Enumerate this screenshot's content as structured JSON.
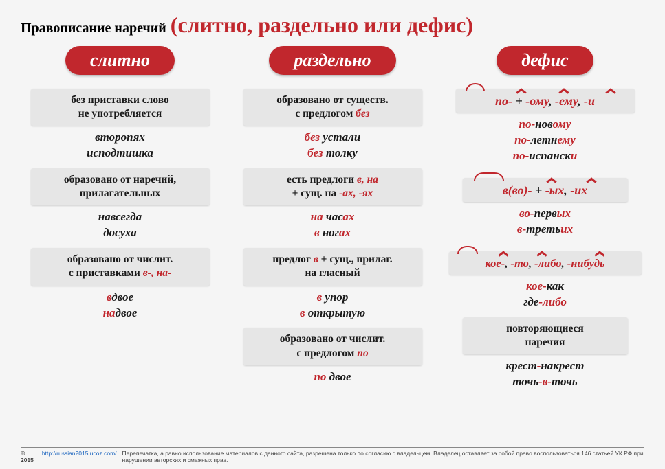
{
  "title": {
    "prefix": "Правописание наречий",
    "paren": "(слитно, раздельно или дефис)"
  },
  "pills": {
    "c1": "слитно",
    "c2": "раздельно",
    "c3": "дефис"
  },
  "col1": {
    "r1": {
      "rule": "без приставки слово<br>не употребляется",
      "ex": "<span class='k'>второпях</span><br><span class='k'>исподтишка</span>"
    },
    "r2": {
      "rule": "образовано от наречий,<br>прилагательных",
      "ex": "<span class='k'>навсегда</span><br><span class='k'>досуха</span>"
    },
    "r3": {
      "rule": "образовано от числит.<br>с приставками <span class='red-b'>в-, на-</span>",
      "ex": "<span class='r'>в</span><span class='k'>двое</span><br><span class='r'>на</span><span class='k'>двое</span>"
    }
  },
  "col2": {
    "r1": {
      "rule": "образовано от существ.<br>с предлогом <span class='red-b'>без</span>",
      "ex": "<span class='r'>без </span><span class='k'>устали</span><br><span class='r'>без </span><span class='k'>толку</span>"
    },
    "r2": {
      "rule": "есть предлоги <span class='red-b'>в, на</span><br>+ сущ. на <span class='red-b'>-ах, -ях</span>",
      "ex": "<span class='r'>на </span><span class='k'>час</span><span class='r'>ах</span><br><span class='r'>в </span><span class='k'>ног</span><span class='r'>ах</span>"
    },
    "r3": {
      "rule": "предлог <span class='red-b'>в</span> + сущ., прилаг.<br>на гласный",
      "ex": "<span class='r'>в </span><span class='k'>упор</span><br><span class='r'>в </span><span class='k'>открытую</span>"
    },
    "r4": {
      "rule": "образовано от числит.<br>с предлогом <span class='red-b'>по</span>",
      "ex": "<span class='r'>по </span><span class='k'>двое</span>"
    }
  },
  "col3": {
    "p1": {
      "pat": "<span class='r'>по-</span> + <span class='r'>-ому</span>, <span class='r'>-ему</span>, <span class='r'>-и</span>",
      "ex": "<span class='r'>по-</span><span class='k'>нов</span><span class='r'>ому</span><br><span class='r'>по-</span><span class='k'>летн</span><span class='r'>ему</span><br><span class='r'>по-</span><span class='k'>испанск</span><span class='r'>и</span>"
    },
    "p2": {
      "pat": "<span class='r'>в(во)-</span> + <span class='r'>-ых</span>, <span class='r'>-их</span>",
      "ex": "<span class='r'>во-</span><span class='k'>перв</span><span class='r'>ых</span><br><span class='r'>в-</span><span class='k'>треть</span><span class='r'>их</span>"
    },
    "p3": {
      "pat": "<span class='r'>кое-</span>, <span class='r'>-то</span>, <span class='r'>-либо</span>, <span class='r'>-нибудь</span>",
      "ex": "<span class='r'>кое-</span><span class='k'>как</span><br><span class='k'>где</span><span class='r'>-либо</span>"
    },
    "p4": {
      "rule": "повторяющиеся<br>наречия",
      "ex": "<span class='k'>крест</span><span class='r'>-</span><span class='k'>накрест</span><br><span class='k'>точь</span><span class='r'>-в-</span><span class='k'>точь</span>"
    }
  },
  "footer": {
    "year": "© 2015",
    "url": "http://russian2015.ucoz.com/",
    "text": "Перепечатка, а равно использование материалов с данного сайта, разрешена только по согласию с владельцем. Владелец оставляет за собой право воспользоваться 146 статьей УК РФ при нарушении авторских и смежных прав."
  },
  "colors": {
    "red": "#c1272d",
    "boxbg": "#e6e6e6",
    "pagebg": "#f5f5f5"
  }
}
